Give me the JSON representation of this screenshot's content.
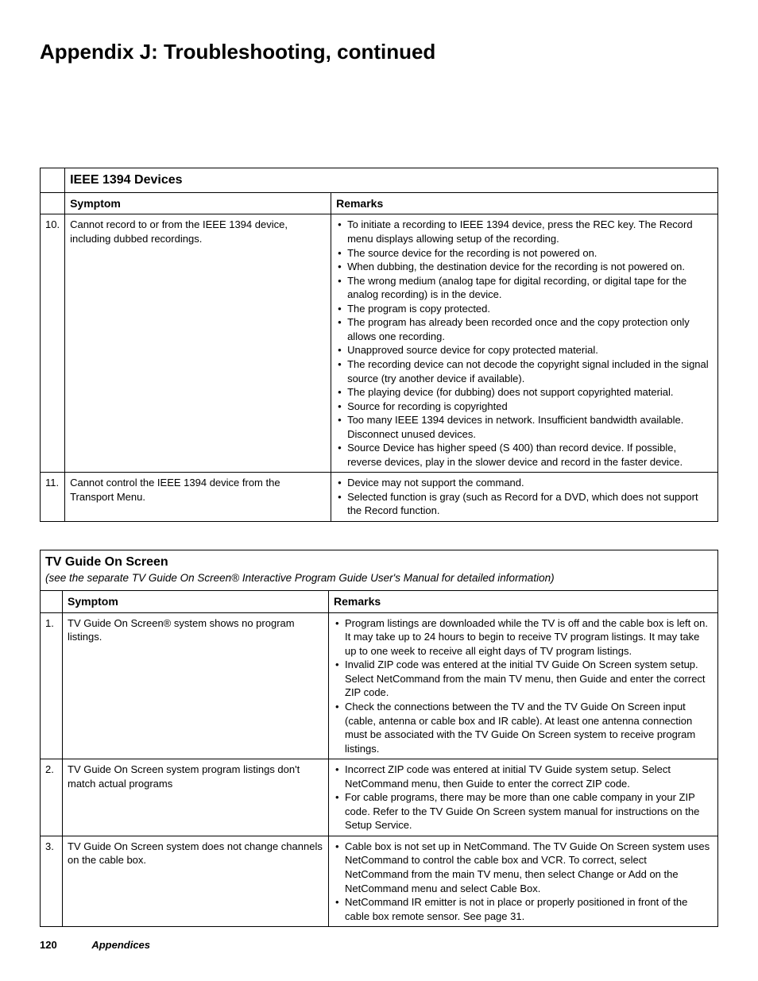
{
  "page_title": "Appendix J:  Troubleshooting, continued",
  "footer": {
    "page_number": "120",
    "section": "Appendices"
  },
  "table1": {
    "section_title": "IEEE 1394 Devices",
    "columns": {
      "symptom": "Symptom",
      "remarks": "Remarks"
    },
    "rows": [
      {
        "num": "10.",
        "symptom": "Cannot record to or from the IEEE 1394 device, including dubbed recordings.",
        "remarks": [
          "To initiate a recording to IEEE 1394 device, press the REC key.  The Record menu displays allowing setup of the recording.",
          "The source device for the recording is not powered on.",
          "When dubbing, the destination device for the recording is not powered on.",
          "The wrong medium (analog tape for digital recording, or digital tape for the analog recording) is in the device.",
          "The program is copy protected.",
          "The program has already been recorded once and the copy protection only allows one recording.",
          "Unapproved source device for copy protected material.",
          "The recording device can not decode the copyright signal included in the signal source (try another device if available).",
          "The playing device (for dubbing) does not support copyrighted material.",
          "Source for recording is copyrighted",
          "Too many IEEE 1394 devices in network. Insufficient bandwidth available.  Disconnect unused devices.",
          "Source Device has higher speed (S 400) than record device.  If possible, reverse devices, play in the slower device and record in the faster device."
        ]
      },
      {
        "num": "11.",
        "symptom": "Cannot control the IEEE 1394 device from the Transport Menu.",
        "remarks": [
          "Device may not support the command.",
          "Selected function is gray (such as Record for a DVD, which does not support the Record function."
        ]
      }
    ]
  },
  "table2": {
    "section_title": "TV Guide On Screen",
    "section_subtitle": "(see the separate TV Guide On Screen® Interactive Program Guide User's Manual for detailed information)",
    "columns": {
      "symptom": "Symptom",
      "remarks": "Remarks"
    },
    "rows": [
      {
        "num": "1.",
        "symptom": "TV Guide On Screen® system shows no program listings.",
        "remarks": [
          "Program listings are downloaded while the TV is off and the cable box is left on.  It may take up to 24 hours to begin to receive TV program listings.  It may take up to one week to receive all eight days of TV program listings.",
          "Invalid ZIP code was entered at the initial TV Guide On Screen system setup.  Select NetCommand from the main TV menu, then Guide and enter the correct ZIP code.",
          "Check the connections between the TV and the TV Guide On Screen input (cable, antenna or cable box and IR cable).  At least one antenna connection must be associated with the TV Guide On Screen system to receive program listings."
        ]
      },
      {
        "num": "2.",
        "symptom": "TV Guide On Screen system program listings don't match actual programs",
        "remarks": [
          "Incorrect ZIP code was entered at initial TV Guide system setup.  Select NetCommand menu, then Guide to enter the correct ZIP code.",
          "For cable programs, there may be more than one cable company in your ZIP code.  Refer to the TV Guide On Screen system manual for instructions on the Setup Service."
        ]
      },
      {
        "num": "3.",
        "symptom": "TV Guide On Screen system does not change channels on the cable box.",
        "remarks": [
          "Cable box is not set up in NetCommand.  The TV Guide On Screen system uses NetCommand to control the cable box and VCR.  To correct, select NetCommand from the main TV menu, then select Change or Add on the NetCommand menu and select Cable Box.",
          "NetCommand IR emitter is not in place or properly positioned in front of the cable box remote sensor.  See page 31."
        ]
      }
    ]
  }
}
